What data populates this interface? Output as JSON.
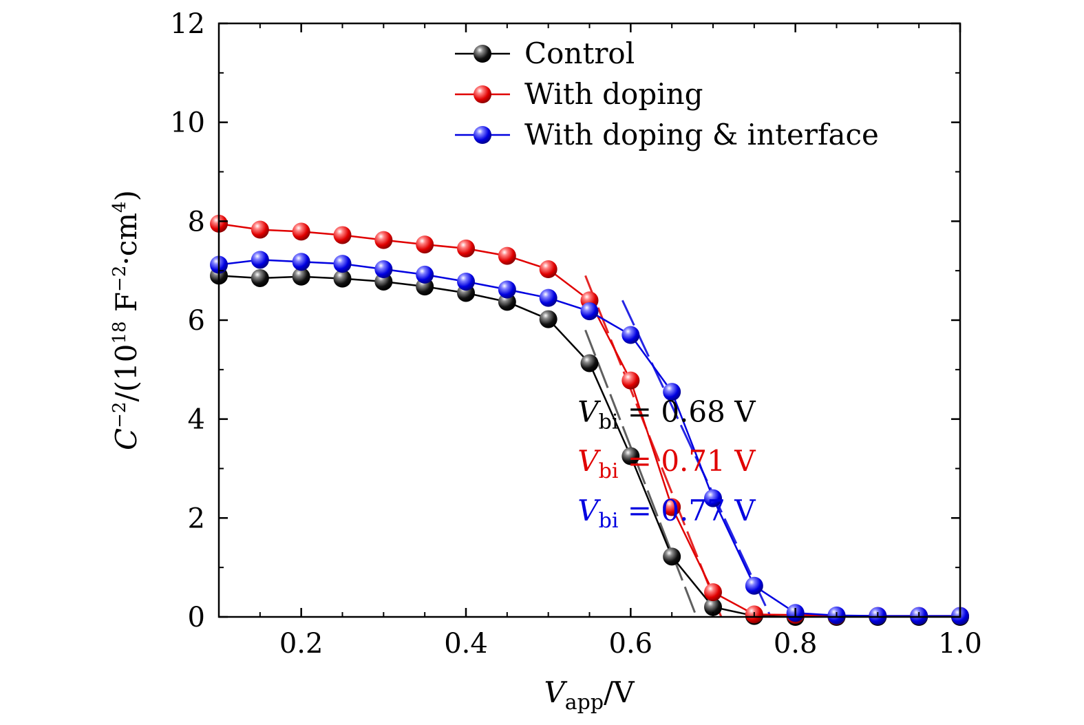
{
  "chart_data": {
    "type": "line",
    "x_axis": {
      "label_main": "V",
      "label_sub": "app",
      "label_rest": "/V",
      "range": [
        0.1,
        1.0
      ],
      "ticks": [
        0.2,
        0.4,
        0.6,
        0.8,
        1.0
      ],
      "tick_labels": [
        "0.2",
        "0.4",
        "0.6",
        "0.8",
        "1.0"
      ],
      "minor_step": 0.05
    },
    "y_axis": {
      "label_main": "C",
      "label_sup1": "−2",
      "label_mid": "/(10",
      "label_sup2": "18",
      "label_mid2": " F",
      "label_sup3": "−2",
      "label_mid3": "·cm",
      "label_sup4": "4",
      "label_end": ")",
      "range": [
        0,
        12
      ],
      "ticks": [
        0,
        2,
        4,
        6,
        8,
        10,
        12
      ],
      "tick_labels": [
        "0",
        "2",
        "4",
        "6",
        "8",
        "10",
        "12"
      ],
      "minor_step": 1
    },
    "legend_position": "top-right",
    "series": [
      {
        "name": "Control",
        "color": "#000000",
        "x": [
          0.1,
          0.15,
          0.2,
          0.25,
          0.3,
          0.35,
          0.4,
          0.45,
          0.5,
          0.55,
          0.6,
          0.65,
          0.7,
          0.75,
          0.8,
          0.85,
          0.9,
          0.95,
          1.0
        ],
        "y": [
          6.9,
          6.85,
          6.88,
          6.84,
          6.78,
          6.68,
          6.55,
          6.37,
          6.02,
          5.13,
          3.25,
          1.22,
          0.2,
          0.02,
          0.0,
          0.0,
          0.0,
          0.0,
          0.0
        ],
        "fit_line": {
          "x": [
            0.545,
            0.68
          ],
          "y": [
            5.8,
            0.0
          ]
        }
      },
      {
        "name": "With doping",
        "color": "#e00000",
        "x": [
          0.1,
          0.15,
          0.2,
          0.25,
          0.3,
          0.35,
          0.4,
          0.45,
          0.5,
          0.55,
          0.6,
          0.65,
          0.7,
          0.75,
          0.8,
          0.85,
          0.9,
          0.95,
          1.0
        ],
        "y": [
          7.95,
          7.83,
          7.79,
          7.72,
          7.62,
          7.53,
          7.45,
          7.3,
          7.03,
          6.4,
          4.78,
          2.22,
          0.5,
          0.05,
          0.04,
          0.02,
          0.02,
          0.02,
          0.02
        ],
        "fit_line": {
          "x": [
            0.545,
            0.71
          ],
          "y": [
            6.9,
            0.0
          ]
        }
      },
      {
        "name": "With doping & interface",
        "color": "#0000e0",
        "x": [
          0.1,
          0.15,
          0.2,
          0.25,
          0.3,
          0.35,
          0.4,
          0.45,
          0.5,
          0.55,
          0.6,
          0.65,
          0.7,
          0.75,
          0.8,
          0.85,
          0.9,
          0.95,
          1.0
        ],
        "y": [
          7.12,
          7.22,
          7.18,
          7.14,
          7.03,
          6.92,
          6.78,
          6.62,
          6.45,
          6.18,
          5.7,
          4.55,
          2.4,
          0.63,
          0.08,
          0.03,
          0.02,
          0.02,
          0.02
        ],
        "fit_line": {
          "x": [
            0.59,
            0.77
          ],
          "y": [
            6.4,
            0.0
          ]
        }
      }
    ],
    "annotations": [
      {
        "main": "V",
        "sub": "bi",
        "text": " = 0.68 V",
        "color": "#000000",
        "x": 0.615,
        "y": 3.95
      },
      {
        "main": "V",
        "sub": "bi",
        "text": " = 0.71 V",
        "color": "#e00000",
        "x": 0.615,
        "y": 2.95
      },
      {
        "main": "V",
        "sub": "bi",
        "text": " = 0.77 V",
        "color": "#0000e0",
        "x": 0.615,
        "y": 1.95
      }
    ]
  }
}
